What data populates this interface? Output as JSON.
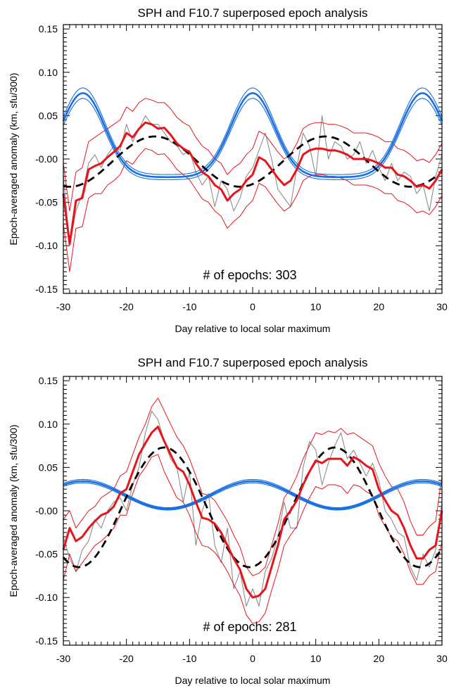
{
  "chart_data": [
    {
      "type": "line",
      "title": "SPH and F10.7 superposed epoch analysis",
      "xlabel": "Day relative to local solar maximum",
      "ylabel": "Epoch-averaged anomaly (km, sfu/300)",
      "xlim": [
        -30,
        30
      ],
      "ylim": [
        -0.155,
        0.155
      ],
      "xticks": [
        "-30",
        "-20",
        "-10",
        "0",
        "10",
        "20",
        "30"
      ],
      "yticks": [
        "0.15",
        "0.10",
        "0.05",
        "-0.00",
        "-0.05",
        "-0.10",
        "-0.15"
      ],
      "annotation": "# of epochs: 303",
      "colors": {
        "raw": "#8c8c8c",
        "smoothed": "#e8141b",
        "bounds": "#e8141b",
        "fit": "#000000",
        "f107": "#1a6fe0"
      },
      "x": [
        -30,
        -29,
        -28,
        -27,
        -26,
        -25,
        -24,
        -23,
        -22,
        -21,
        -20,
        -19,
        -18,
        -17,
        -16,
        -15,
        -14,
        -13,
        -12,
        -11,
        -10,
        -9,
        -8,
        -7,
        -6,
        -5,
        -4,
        -3,
        -2,
        -1,
        0,
        1,
        2,
        3,
        4,
        5,
        6,
        7,
        8,
        9,
        10,
        11,
        12,
        13,
        14,
        15,
        16,
        17,
        18,
        19,
        20,
        21,
        22,
        23,
        24,
        25,
        26,
        27,
        28,
        29,
        30
      ],
      "series": [
        {
          "role": "raw",
          "values": [
            -0.02,
            -0.1,
            -0.06,
            -0.04,
            -0.005,
            0.005,
            -0.01,
            0.005,
            0.015,
            0.01,
            0.04,
            0.02,
            0.035,
            0.05,
            0.04,
            0.04,
            0.03,
            0.02,
            0.015,
            0.005,
            0.01,
            -0.015,
            -0.03,
            -0.02,
            -0.055,
            -0.025,
            -0.035,
            -0.06,
            -0.045,
            -0.02,
            -0.01,
            0.01,
            0.03,
            0.0,
            -0.035,
            -0.045,
            -0.055,
            -0.01,
            0.03,
            0.015,
            -0.02,
            0.05,
            0.0,
            0.02,
            0.015,
            0.0,
            0.005,
            0.02,
            -0.005,
            0.01,
            -0.01,
            -0.025,
            -0.005,
            -0.025,
            -0.015,
            -0.02,
            -0.04,
            -0.03,
            -0.06,
            -0.02,
            0.005
          ]
        },
        {
          "role": "smoothed",
          "values": [
            -0.04,
            -0.098,
            -0.048,
            -0.045,
            -0.012,
            -0.008,
            -0.005,
            0.002,
            0.008,
            0.015,
            0.03,
            0.025,
            0.035,
            0.042,
            0.04,
            0.035,
            0.036,
            0.028,
            0.018,
            0.012,
            0.008,
            -0.005,
            -0.015,
            -0.02,
            -0.03,
            -0.035,
            -0.048,
            -0.04,
            -0.035,
            -0.025,
            -0.018,
            0.002,
            -0.002,
            -0.012,
            -0.022,
            -0.03,
            -0.025,
            -0.012,
            0.005,
            0.01,
            0.012,
            0.012,
            0.01,
            0.01,
            0.008,
            0.005,
            0.0,
            0.0,
            0.0,
            -0.002,
            -0.005,
            -0.01,
            -0.01,
            -0.018,
            -0.02,
            -0.025,
            -0.032,
            -0.03,
            -0.034,
            -0.025,
            -0.012
          ]
        },
        {
          "role": "upper",
          "values": [
            -0.005,
            -0.06,
            -0.015,
            -0.01,
            0.02,
            0.025,
            0.03,
            0.035,
            0.04,
            0.045,
            0.06,
            0.055,
            0.065,
            0.07,
            0.068,
            0.065,
            0.065,
            0.058,
            0.048,
            0.042,
            0.038,
            0.025,
            0.015,
            0.01,
            0.0,
            -0.005,
            -0.018,
            -0.01,
            -0.005,
            0.005,
            0.012,
            0.032,
            0.028,
            0.018,
            0.008,
            0.0,
            0.005,
            0.018,
            0.035,
            0.04,
            0.042,
            0.042,
            0.04,
            0.04,
            0.038,
            0.035,
            0.03,
            0.03,
            0.03,
            0.028,
            0.025,
            0.02,
            0.02,
            0.012,
            0.01,
            0.005,
            -0.002,
            0.0,
            -0.004,
            0.005,
            0.018
          ]
        },
        {
          "role": "lower",
          "values": [
            -0.075,
            -0.13,
            -0.08,
            -0.078,
            -0.045,
            -0.04,
            -0.04,
            -0.03,
            -0.025,
            -0.018,
            -0.002,
            -0.006,
            0.004,
            0.012,
            0.01,
            0.005,
            0.006,
            -0.002,
            -0.012,
            -0.018,
            -0.024,
            -0.035,
            -0.046,
            -0.05,
            -0.06,
            -0.066,
            -0.08,
            -0.072,
            -0.066,
            -0.055,
            -0.048,
            -0.028,
            -0.032,
            -0.042,
            -0.052,
            -0.06,
            -0.055,
            -0.042,
            -0.025,
            -0.02,
            -0.018,
            -0.018,
            -0.02,
            -0.02,
            -0.022,
            -0.025,
            -0.03,
            -0.03,
            -0.03,
            -0.032,
            -0.035,
            -0.04,
            -0.04,
            -0.048,
            -0.05,
            -0.055,
            -0.062,
            -0.06,
            -0.064,
            -0.055,
            -0.042
          ]
        },
        {
          "role": "fit",
          "amplitude": 0.029,
          "center": -0.003,
          "period_days": 27,
          "phase_day": -15.5,
          "x_range": [
            -30,
            30
          ]
        },
        {
          "role": "f107",
          "amplitude": 0.097,
          "offset": -0.021,
          "width": 3.45,
          "period_days": 26.9,
          "x_range": [
            -30,
            30
          ]
        },
        {
          "role": "f107_upper",
          "amplitude": 0.1,
          "offset": -0.018,
          "width": 3.45,
          "period_days": 26.9,
          "x_range": [
            -30,
            30
          ]
        },
        {
          "role": "f107_lower",
          "amplitude": 0.094,
          "offset": -0.024,
          "width": 3.45,
          "period_days": 26.9,
          "x_range": [
            -30,
            30
          ]
        }
      ]
    },
    {
      "type": "line",
      "title": "SPH and F10.7 superposed epoch analysis",
      "xlabel": "Day relative to local solar maximum",
      "ylabel": "Epoch-averaged anomaly (km, sfu/300)",
      "xlim": [
        -30,
        30
      ],
      "ylim": [
        -0.155,
        0.155
      ],
      "xticks": [
        "-30",
        "-20",
        "-10",
        "0",
        "10",
        "20",
        "30"
      ],
      "yticks": [
        "0.15",
        "0.10",
        "0.05",
        "-0.00",
        "-0.05",
        "-0.10",
        "-0.15"
      ],
      "annotation": "# of epochs: 281",
      "colors": {
        "raw": "#8c8c8c",
        "smoothed": "#e8141b",
        "bounds": "#e8141b",
        "fit": "#000000",
        "f107": "#1a6fe0"
      },
      "x": [
        -30,
        -29,
        -28,
        -27,
        -26,
        -25,
        -24,
        -23,
        -22,
        -21,
        -20,
        -19,
        -18,
        -17,
        -16,
        -15,
        -14,
        -13,
        -12,
        -11,
        -10,
        -9,
        -8,
        -7,
        -6,
        -5,
        -4,
        -3,
        -2,
        -1,
        0,
        1,
        2,
        3,
        4,
        5,
        6,
        7,
        8,
        9,
        10,
        11,
        12,
        13,
        14,
        15,
        16,
        17,
        18,
        19,
        20,
        21,
        22,
        23,
        24,
        25,
        26,
        27,
        28,
        29,
        30
      ],
      "series": [
        {
          "role": "raw",
          "values": [
            -0.03,
            -0.055,
            -0.07,
            -0.045,
            -0.035,
            -0.01,
            -0.02,
            0.0,
            0.01,
            0.015,
            0.0,
            0.03,
            0.05,
            0.09,
            0.115,
            0.105,
            0.08,
            0.06,
            0.05,
            0.01,
            0.045,
            -0.04,
            0.0,
            0.02,
            -0.04,
            -0.06,
            -0.02,
            -0.09,
            -0.07,
            -0.11,
            -0.09,
            -0.11,
            -0.07,
            -0.055,
            -0.03,
            0.01,
            -0.02,
            -0.02,
            0.05,
            0.08,
            0.07,
            0.03,
            0.055,
            0.075,
            0.09,
            0.06,
            0.07,
            0.055,
            0.04,
            0.055,
            0.035,
            0.0,
            -0.01,
            -0.025,
            -0.03,
            -0.065,
            -0.08,
            -0.05,
            -0.065,
            -0.045,
            0.01
          ]
        },
        {
          "role": "smoothed",
          "values": [
            -0.045,
            -0.02,
            -0.035,
            -0.03,
            -0.02,
            -0.012,
            -0.005,
            -0.002,
            0.005,
            0.02,
            0.025,
            0.045,
            0.065,
            0.078,
            0.09,
            0.097,
            0.08,
            0.065,
            0.05,
            0.045,
            0.03,
            0.01,
            -0.008,
            -0.01,
            -0.015,
            -0.025,
            -0.04,
            -0.055,
            -0.068,
            -0.09,
            -0.1,
            -0.098,
            -0.09,
            -0.065,
            -0.04,
            -0.01,
            0.0,
            0.012,
            0.03,
            0.045,
            0.058,
            0.055,
            0.06,
            0.06,
            0.06,
            0.052,
            0.062,
            0.058,
            0.052,
            0.048,
            0.025,
            0.012,
            0.0,
            -0.005,
            -0.02,
            -0.04,
            -0.055,
            -0.055,
            -0.045,
            -0.04,
            0.0
          ]
        },
        {
          "role": "upper",
          "values": [
            -0.01,
            0.0,
            -0.02,
            -0.01,
            0.0,
            0.005,
            0.015,
            0.02,
            0.025,
            0.04,
            0.045,
            0.065,
            0.085,
            0.1,
            0.12,
            0.13,
            0.115,
            0.1,
            0.085,
            0.075,
            0.06,
            0.04,
            0.02,
            0.018,
            0.012,
            0.0,
            -0.012,
            -0.028,
            -0.042,
            -0.065,
            -0.075,
            -0.072,
            -0.065,
            -0.04,
            -0.015,
            0.015,
            0.025,
            0.04,
            0.06,
            0.075,
            0.09,
            0.088,
            0.092,
            0.09,
            0.095,
            0.088,
            0.09,
            0.085,
            0.08,
            0.075,
            0.055,
            0.04,
            0.028,
            0.025,
            0.01,
            -0.012,
            -0.028,
            -0.028,
            -0.018,
            -0.012,
            0.04
          ]
        },
        {
          "role": "lower",
          "values": [
            -0.08,
            -0.05,
            -0.07,
            -0.06,
            -0.05,
            -0.04,
            -0.035,
            -0.028,
            -0.02,
            -0.005,
            -0.005,
            0.02,
            0.04,
            0.05,
            0.062,
            0.065,
            0.045,
            0.03,
            0.015,
            0.01,
            -0.005,
            -0.025,
            -0.04,
            -0.042,
            -0.048,
            -0.058,
            -0.07,
            -0.085,
            -0.098,
            -0.12,
            -0.13,
            -0.128,
            -0.118,
            -0.092,
            -0.068,
            -0.04,
            -0.028,
            -0.018,
            0.0,
            0.015,
            0.028,
            0.025,
            0.03,
            0.03,
            0.028,
            0.02,
            0.03,
            0.028,
            0.022,
            0.018,
            -0.005,
            -0.018,
            -0.03,
            -0.035,
            -0.05,
            -0.07,
            -0.085,
            -0.085,
            -0.075,
            -0.07,
            -0.035
          ]
        },
        {
          "role": "fit",
          "amplitude": 0.069,
          "center": 0.004,
          "period_days": 27,
          "phase_day": -14,
          "x_range": [
            -30,
            30
          ]
        },
        {
          "role": "f107",
          "amplitude": 0.053,
          "offset": -0.019,
          "width": 7.5,
          "period_days": 26.9,
          "x_range": [
            -30,
            30
          ]
        },
        {
          "role": "f107_upper",
          "amplitude": 0.054,
          "offset": -0.018,
          "width": 7.5,
          "period_days": 26.9,
          "x_range": [
            -30,
            30
          ]
        },
        {
          "role": "f107_lower",
          "amplitude": 0.052,
          "offset": -0.02,
          "width": 7.5,
          "period_days": 26.9,
          "x_range": [
            -30,
            30
          ]
        }
      ]
    }
  ]
}
